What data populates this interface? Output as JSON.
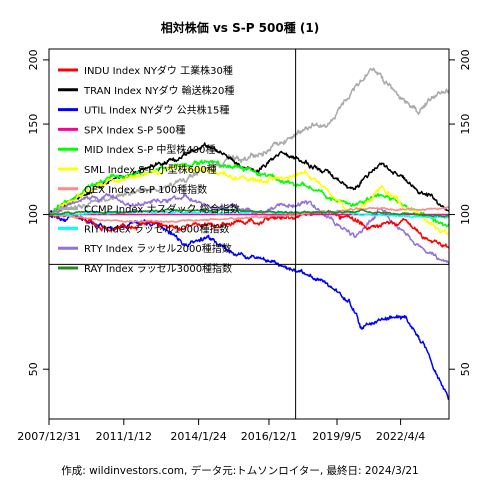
{
  "chart_data": {
    "type": "line",
    "title": "相対株価 vs S-P 500種 (1)",
    "caption": "作成: wildinvestors.com, データ元:トムソンロイター, 最終日: 2024/3/21",
    "y_scale": "log",
    "ylim": [
      40,
      210
    ],
    "y_ticks": [
      50,
      100,
      150,
      200
    ],
    "x_range": [
      "2007-12-31",
      "2024-03-21"
    ],
    "x_ticks": [
      {
        "date": "2007-12-31",
        "label": "2007/12/31"
      },
      {
        "date": "2011-01-12",
        "label": "2011/1/12"
      },
      {
        "date": "2014-01-24",
        "label": "2014/1/24"
      },
      {
        "date": "2016-12-01",
        "label": "2016/12/1"
      },
      {
        "date": "2019-09-05",
        "label": "2019/9/5"
      },
      {
        "date": "2022-04-04",
        "label": "2022/4/4"
      }
    ],
    "reference_lines": {
      "h": 80,
      "v_date": "2017-12-31"
    },
    "legend_position": "top-left",
    "series": [
      {
        "name": "INDU Index NYダウ 工業株30種",
        "color": "#ff0000",
        "x": [
          "2007-12-31",
          "2009-03-01",
          "2010-06-01",
          "2012-01-01",
          "2013-06-01",
          "2015-01-01",
          "2016-06-01",
          "2017-12-01",
          "2018-12-01",
          "2020-03-01",
          "2021-01-01",
          "2022-06-01",
          "2023-03-01",
          "2024-03-21"
        ],
        "values": [
          100,
          99,
          94,
          96,
          94,
          96,
          97,
          99,
          101,
          99,
          94,
          97,
          90,
          86
        ]
      },
      {
        "name": "TRAN Index NYダウ 輸送株20種",
        "color": "#000000",
        "x": [
          "2007-12-31",
          "2009-03-01",
          "2010-06-01",
          "2012-01-01",
          "2013-06-01",
          "2014-06-01",
          "2015-06-01",
          "2016-06-01",
          "2017-06-01",
          "2018-06-01",
          "2019-06-01",
          "2020-06-01",
          "2021-06-01",
          "2022-06-01",
          "2023-06-01",
          "2024-03-21"
        ],
        "values": [
          100,
          108,
          116,
          124,
          130,
          136,
          128,
          120,
          132,
          126,
          120,
          112,
          126,
          118,
          108,
          102
        ]
      },
      {
        "name": "UTIL Index NYダウ 公共株15種",
        "color": "#0000ff",
        "x": [
          "2007-12-31",
          "2009-03-01",
          "2010-06-01",
          "2011-06-01",
          "2012-06-01",
          "2013-06-01",
          "2014-06-01",
          "2015-06-01",
          "2016-06-01",
          "2017-06-01",
          "2018-06-01",
          "2019-06-01",
          "2020-03-01",
          "2020-09-01",
          "2021-06-01",
          "2022-06-01",
          "2023-03-01",
          "2023-09-01",
          "2024-03-21"
        ],
        "values": [
          100,
          98,
          94,
          96,
          96,
          88,
          90,
          84,
          82,
          80,
          77,
          72,
          68,
          60,
          62,
          64,
          56,
          50,
          44
        ]
      },
      {
        "name": "SPX Index S-P 500種",
        "color": "#ff0099",
        "x": [
          "2007-12-31",
          "2024-03-21"
        ],
        "values": [
          100,
          100
        ]
      },
      {
        "name": "MID Index S-P 中型株400種",
        "color": "#00ff00",
        "x": [
          "2007-12-31",
          "2009-03-01",
          "2010-06-01",
          "2011-06-01",
          "2013-06-01",
          "2014-06-01",
          "2015-06-01",
          "2016-06-01",
          "2017-06-01",
          "2018-06-01",
          "2019-06-01",
          "2020-06-01",
          "2021-06-01",
          "2022-06-01",
          "2023-06-01",
          "2024-03-21"
        ],
        "values": [
          100,
          110,
          118,
          120,
          124,
          126,
          124,
          120,
          117,
          114,
          108,
          104,
          110,
          104,
          98,
          95
        ]
      },
      {
        "name": "SML Index S-P 小型株600種",
        "color": "#ffff00",
        "x": [
          "2007-12-31",
          "2009-03-01",
          "2010-06-01",
          "2011-06-01",
          "2013-06-01",
          "2014-06-01",
          "2015-06-01",
          "2016-06-01",
          "2017-06-01",
          "2018-06-01",
          "2019-06-01",
          "2020-06-01",
          "2021-06-01",
          "2022-06-01",
          "2023-06-01",
          "2024-03-21"
        ],
        "values": [
          100,
          108,
          116,
          118,
          124,
          122,
          118,
          116,
          118,
          121,
          110,
          100,
          114,
          104,
          96,
          92
        ]
      },
      {
        "name": "OEX Index S-P 100種指数",
        "color": "#ff8888",
        "x": [
          "2007-12-31",
          "2009-03-01",
          "2011-01-01",
          "2013-01-01",
          "2015-01-01",
          "2017-01-01",
          "2019-01-01",
          "2021-01-01",
          "2023-01-01",
          "2024-03-21"
        ],
        "values": [
          100,
          99,
          97,
          97,
          98,
          99,
          101,
          103,
          102,
          103
        ]
      },
      {
        "name": "CCMP Index ナスダック 総合指数",
        "color": "#aaaaaa",
        "x": [
          "2007-12-31",
          "2009-03-01",
          "2010-06-01",
          "2011-06-01",
          "2012-06-01",
          "2013-06-01",
          "2014-06-01",
          "2015-06-01",
          "2016-06-01",
          "2017-06-01",
          "2018-06-01",
          "2019-06-01",
          "2020-06-01",
          "2021-01-01",
          "2021-06-01",
          "2022-06-01",
          "2023-01-01",
          "2023-09-01",
          "2024-03-21"
        ],
        "values": [
          100,
          104,
          108,
          110,
          112,
          116,
          122,
          128,
          130,
          138,
          148,
          152,
          175,
          190,
          185,
          165,
          160,
          172,
          175
        ]
      },
      {
        "name": "RIY Index ラッセル1000種指数",
        "color": "#00ffff",
        "x": [
          "2007-12-31",
          "2009-03-01",
          "2011-01-01",
          "2013-01-01",
          "2015-01-01",
          "2017-01-01",
          "2019-01-01",
          "2021-01-01",
          "2023-01-01",
          "2024-03-21"
        ],
        "values": [
          100,
          100,
          101,
          101,
          101,
          101,
          101,
          100,
          99,
          99
        ]
      },
      {
        "name": "RTY Index ラッセル2000種指数",
        "color": "#9370db",
        "x": [
          "2007-12-31",
          "2009-03-01",
          "2010-06-01",
          "2011-06-01",
          "2013-06-01",
          "2014-06-01",
          "2015-06-01",
          "2016-06-01",
          "2017-06-01",
          "2018-06-01",
          "2019-06-01",
          "2020-06-01",
          "2021-06-01",
          "2022-06-01",
          "2023-06-01",
          "2024-03-21"
        ],
        "values": [
          100,
          106,
          108,
          104,
          108,
          104,
          103,
          101,
          104,
          106,
          98,
          90,
          102,
          92,
          84,
          80
        ]
      },
      {
        "name": "RAY Index ラッセル3000種指数",
        "color": "#228b22",
        "x": [
          "2007-12-31",
          "2009-03-01",
          "2011-01-01",
          "2013-01-01",
          "2015-01-01",
          "2017-01-01",
          "2019-01-01",
          "2021-01-01",
          "2023-01-01",
          "2024-03-21"
        ],
        "values": [
          100,
          101,
          101,
          102,
          102,
          101,
          101,
          101,
          100,
          99
        ]
      }
    ]
  }
}
